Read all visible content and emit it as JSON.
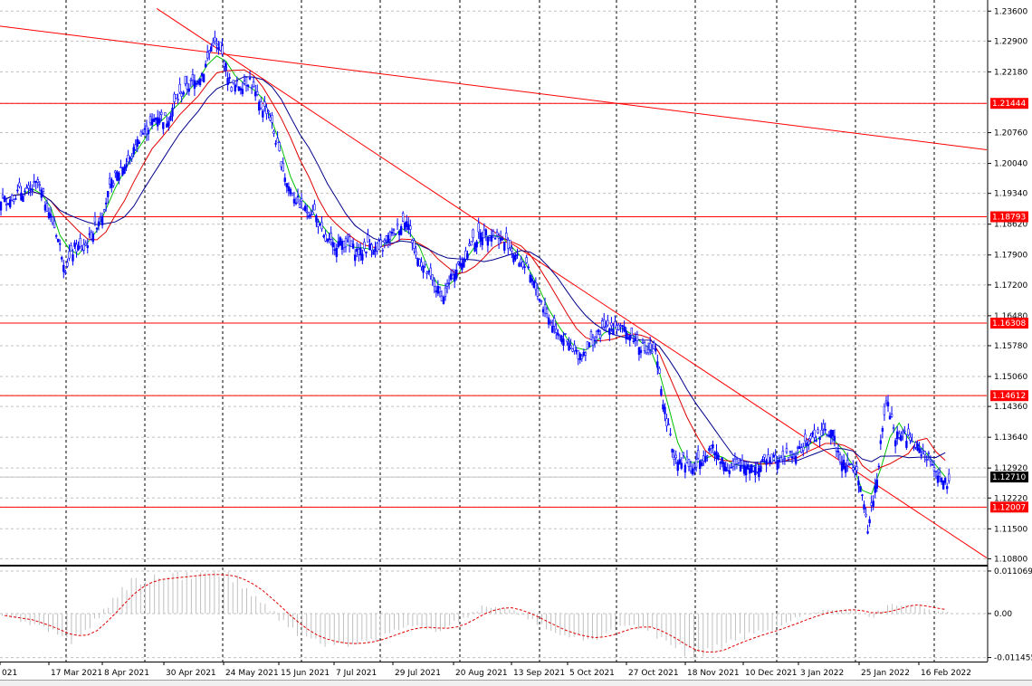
{
  "chart_data": {
    "type": "candlestick",
    "instrument_note": "",
    "price_axis": {
      "ticks": [
        "1.23600",
        "1.22900",
        "1.22180",
        "1.21444",
        "1.20760",
        "1.20040",
        "1.19340",
        "1.18793",
        "1.18620",
        "1.17900",
        "1.17200",
        "1.16480",
        "1.16308",
        "1.15780",
        "1.15060",
        "1.14612",
        "1.14360",
        "1.13640",
        "1.12920",
        "1.12710",
        "1.12220",
        "1.12007",
        "1.11500",
        "1.10800"
      ],
      "range": [
        1.1066,
        1.2386
      ]
    },
    "oscillator_axis": {
      "ticks": [
        "0.011069",
        "0.00",
        "-0.011455"
      ],
      "range": [
        -0.0125,
        0.012
      ]
    },
    "time_axis": {
      "labels": [
        "021",
        "17 Mar 2021",
        "8 Apr 2021",
        "30 Apr 2021",
        "24 May 2021",
        "15 Jun 2021",
        "7 Jul 2021",
        "29 Jul 2021",
        "20 Aug 2021",
        "13 Sep 2021",
        "5 Oct 2021",
        "27 Oct 2021",
        "18 Nov 2021",
        "10 Dec 2021",
        "3 Jan 2022",
        "25 Jan 2022",
        "16 Feb 2022"
      ]
    },
    "horizontal_levels": [
      {
        "price": "1.21444",
        "color": "#ff0000"
      },
      {
        "price": "1.18793",
        "color": "#ff0000"
      },
      {
        "price": "1.16308",
        "color": "#ff0000"
      },
      {
        "price": "1.14612",
        "color": "#ff0000"
      },
      {
        "price": "1.12007",
        "color": "#ff0000"
      }
    ],
    "current_price": {
      "price": "1.12710",
      "color": "#000000"
    },
    "trendlines": [
      {
        "from": [
          1.2325,
          0
        ],
        "to": [
          1.2036,
          107
        ],
        "color": "#ff0000"
      },
      {
        "from": [
          1.2366,
          17
        ],
        "to": [
          1.1082,
          107
        ],
        "color": "#ff0000"
      }
    ],
    "ohlc_series_anchors": [
      [
        0,
        1.192
      ],
      [
        3,
        1.197
      ],
      [
        6,
        1.178
      ],
      [
        8,
        1.18
      ],
      [
        10,
        1.19
      ],
      [
        13,
        1.203
      ],
      [
        15,
        1.21
      ],
      [
        17,
        1.212
      ],
      [
        19,
        1.218
      ],
      [
        21,
        1.224
      ],
      [
        22,
        1.227
      ],
      [
        24,
        1.22
      ],
      [
        26,
        1.218
      ],
      [
        28,
        1.213
      ],
      [
        30,
        1.195
      ],
      [
        32,
        1.191
      ],
      [
        34,
        1.183
      ],
      [
        36,
        1.182
      ],
      [
        38,
        1.181
      ],
      [
        40,
        1.18
      ],
      [
        42,
        1.187
      ],
      [
        43,
        1.186
      ],
      [
        45,
        1.174
      ],
      [
        47,
        1.17
      ],
      [
        49,
        1.178
      ],
      [
        51,
        1.183
      ],
      [
        52,
        1.186
      ],
      [
        54,
        1.182
      ],
      [
        56,
        1.178
      ],
      [
        58,
        1.165
      ],
      [
        60,
        1.158
      ],
      [
        62,
        1.156
      ],
      [
        64,
        1.161
      ],
      [
        66,
        1.162
      ],
      [
        68,
        1.16
      ],
      [
        70,
        1.155
      ],
      [
        72,
        1.133
      ],
      [
        74,
        1.127
      ],
      [
        76,
        1.132
      ],
      [
        78,
        1.128
      ],
      [
        80,
        1.13
      ],
      [
        82,
        1.132
      ],
      [
        84,
        1.133
      ],
      [
        86,
        1.133
      ],
      [
        88,
        1.138
      ],
      [
        90,
        1.134
      ],
      [
        92,
        1.127
      ],
      [
        93,
        1.115
      ],
      [
        95,
        1.143
      ],
      [
        96,
        1.137
      ],
      [
        98,
        1.134
      ],
      [
        100,
        1.132
      ],
      [
        101,
        1.125
      ],
      [
        102,
        1.123
      ]
    ],
    "series": [
      {
        "color": "#0000ff",
        "kind": "price"
      },
      {
        "color": "#00c000",
        "kind": "moving-average"
      },
      {
        "color": "#e00000",
        "kind": "moving-average"
      },
      {
        "color": "#00008b",
        "kind": "moving-average"
      }
    ],
    "oscillator": {
      "histogram_color": "#c0c0c0",
      "signal_color": "#e00000",
      "anchors": [
        [
          0,
          -0.0005
        ],
        [
          4,
          -0.0035
        ],
        [
          7,
          -0.007
        ],
        [
          9,
          -0.004
        ],
        [
          12,
          0.004
        ],
        [
          14,
          0.0085
        ],
        [
          18,
          0.0095
        ],
        [
          22,
          0.0105
        ],
        [
          25,
          0.009
        ],
        [
          28,
          0.003
        ],
        [
          31,
          -0.004
        ],
        [
          34,
          -0.0075
        ],
        [
          38,
          -0.008
        ],
        [
          41,
          -0.0055
        ],
        [
          44,
          -0.003
        ],
        [
          47,
          -0.0045
        ],
        [
          50,
          -0.001
        ],
        [
          52,
          0.002
        ],
        [
          55,
          0.001
        ],
        [
          58,
          -0.003
        ],
        [
          61,
          -0.006
        ],
        [
          64,
          -0.0065
        ],
        [
          67,
          -0.003
        ],
        [
          70,
          -0.004
        ],
        [
          72,
          -0.008
        ],
        [
          75,
          -0.011
        ],
        [
          77,
          -0.009
        ],
        [
          80,
          -0.006
        ],
        [
          83,
          -0.004
        ],
        [
          86,
          -0.001
        ],
        [
          89,
          0.001
        ],
        [
          92,
          0.001
        ],
        [
          94,
          -0.001
        ],
        [
          96,
          0.0025
        ],
        [
          99,
          0.002
        ],
        [
          101,
          0.0005
        ]
      ]
    },
    "grid": true,
    "grid_color": "#c0c0c0",
    "grid_style": "dashed",
    "axis_color": "#000000",
    "background": "#ffffff"
  }
}
